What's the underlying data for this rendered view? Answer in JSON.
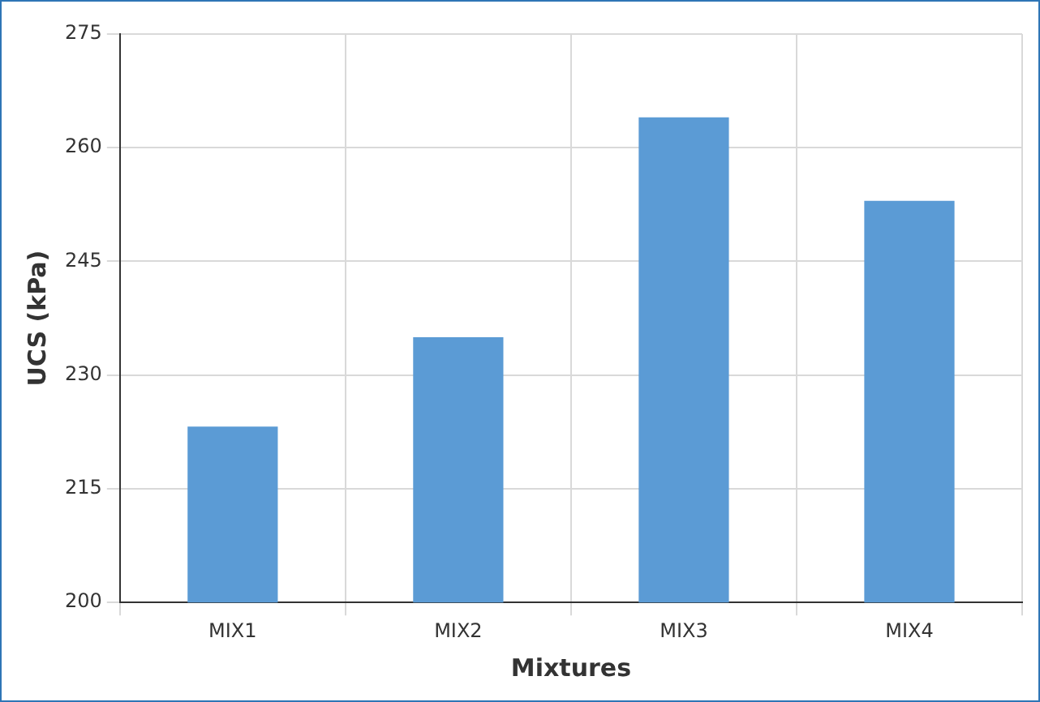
{
  "chart_data": {
    "type": "bar",
    "xlabel": "Mixtures",
    "ylabel": "UCS (kPa)",
    "categories": [
      "MIX1",
      "MIX2",
      "MIX3",
      "MIX4"
    ],
    "values": [
      223.2,
      235,
      264,
      253
    ],
    "color": "#5b9bd5",
    "ylim": [
      200,
      275
    ],
    "yticks": [
      200,
      215,
      230,
      245,
      260,
      275
    ],
    "grid": true
  }
}
